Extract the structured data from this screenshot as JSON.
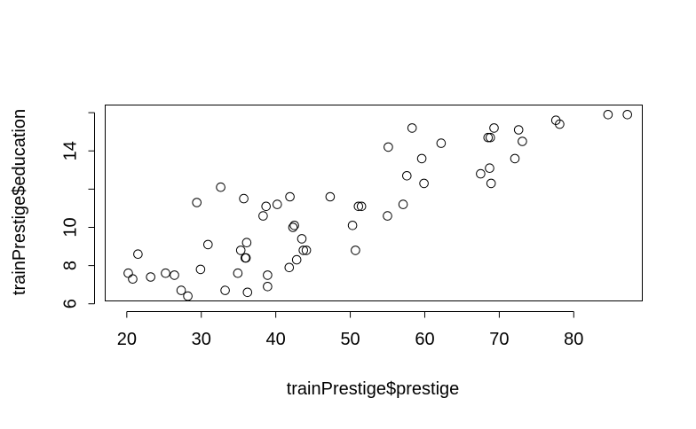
{
  "chart_data": {
    "type": "scatter",
    "title": "",
    "xlabel": "trainPrestige$prestige",
    "ylabel": "trainPrestige$education",
    "xlim": [
      17.1,
      89.2
    ],
    "ylim": [
      6.15,
      16.4
    ],
    "xticks": [
      20,
      30,
      40,
      50,
      60,
      70,
      80
    ],
    "yticks": [
      6,
      8,
      10,
      14
    ],
    "grid": false,
    "legend": "none",
    "points": [
      {
        "x": 20.2,
        "y": 7.6
      },
      {
        "x": 20.8,
        "y": 7.3
      },
      {
        "x": 21.5,
        "y": 8.6
      },
      {
        "x": 23.2,
        "y": 7.4
      },
      {
        "x": 25.2,
        "y": 7.6
      },
      {
        "x": 26.4,
        "y": 7.5
      },
      {
        "x": 27.3,
        "y": 6.7
      },
      {
        "x": 28.2,
        "y": 6.4
      },
      {
        "x": 29.4,
        "y": 11.3
      },
      {
        "x": 29.9,
        "y": 7.8
      },
      {
        "x": 30.9,
        "y": 9.1
      },
      {
        "x": 32.6,
        "y": 12.1
      },
      {
        "x": 33.2,
        "y": 6.7
      },
      {
        "x": 34.9,
        "y": 7.6
      },
      {
        "x": 35.3,
        "y": 8.8
      },
      {
        "x": 35.7,
        "y": 11.5
      },
      {
        "x": 35.9,
        "y": 8.4
      },
      {
        "x": 36.0,
        "y": 8.4
      },
      {
        "x": 36.1,
        "y": 9.2
      },
      {
        "x": 36.2,
        "y": 6.6
      },
      {
        "x": 38.3,
        "y": 10.6
      },
      {
        "x": 38.7,
        "y": 11.1
      },
      {
        "x": 38.9,
        "y": 7.5
      },
      {
        "x": 38.9,
        "y": 6.9
      },
      {
        "x": 40.2,
        "y": 11.2
      },
      {
        "x": 41.8,
        "y": 7.9
      },
      {
        "x": 41.9,
        "y": 11.6
      },
      {
        "x": 42.3,
        "y": 10.0
      },
      {
        "x": 42.5,
        "y": 10.1
      },
      {
        "x": 42.8,
        "y": 8.3
      },
      {
        "x": 43.5,
        "y": 9.4
      },
      {
        "x": 43.7,
        "y": 8.8
      },
      {
        "x": 44.1,
        "y": 8.8
      },
      {
        "x": 47.3,
        "y": 11.6
      },
      {
        "x": 50.3,
        "y": 10.1
      },
      {
        "x": 50.7,
        "y": 8.8
      },
      {
        "x": 51.1,
        "y": 11.1
      },
      {
        "x": 51.5,
        "y": 11.1
      },
      {
        "x": 55.0,
        "y": 10.6
      },
      {
        "x": 55.1,
        "y": 14.2
      },
      {
        "x": 57.1,
        "y": 11.2
      },
      {
        "x": 57.6,
        "y": 12.7
      },
      {
        "x": 58.3,
        "y": 15.2
      },
      {
        "x": 59.6,
        "y": 13.6
      },
      {
        "x": 59.9,
        "y": 12.3
      },
      {
        "x": 62.2,
        "y": 14.4
      },
      {
        "x": 67.5,
        "y": 12.8
      },
      {
        "x": 68.5,
        "y": 14.7
      },
      {
        "x": 68.7,
        "y": 13.1
      },
      {
        "x": 68.8,
        "y": 14.7
      },
      {
        "x": 68.9,
        "y": 12.3
      },
      {
        "x": 69.3,
        "y": 15.2
      },
      {
        "x": 72.1,
        "y": 13.6
      },
      {
        "x": 72.6,
        "y": 15.1
      },
      {
        "x": 73.1,
        "y": 14.5
      },
      {
        "x": 77.6,
        "y": 15.6
      },
      {
        "x": 78.1,
        "y": 15.4
      },
      {
        "x": 84.6,
        "y": 15.9
      },
      {
        "x": 87.2,
        "y": 15.9
      }
    ]
  }
}
